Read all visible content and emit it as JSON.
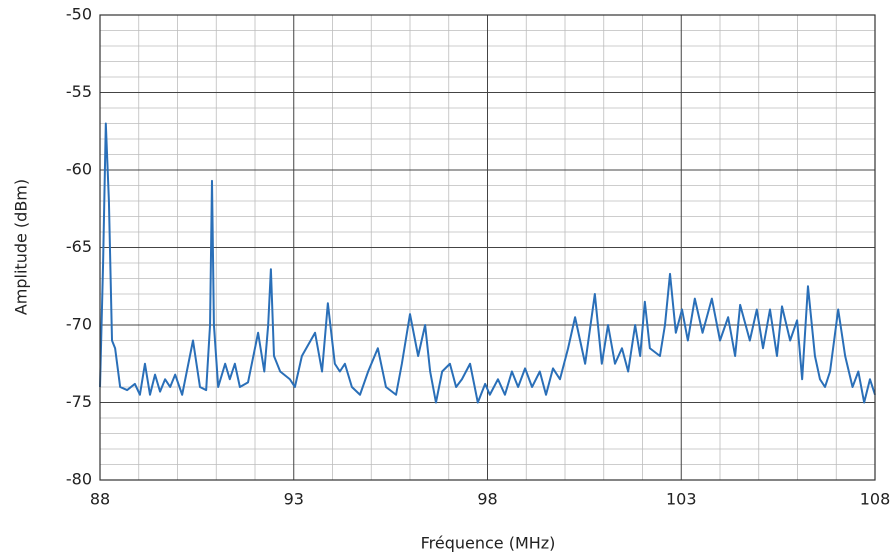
{
  "chart_data": {
    "type": "line",
    "x_label": "Fréquence (MHz)",
    "y_label": "Amplitude (dBm)",
    "xlim": [
      88,
      108
    ],
    "xticks": [
      88,
      93,
      98,
      103,
      108
    ],
    "ylim": [
      -80,
      -50
    ],
    "yticks": [
      -80,
      -75,
      -70,
      -65,
      -60,
      -55,
      -50
    ],
    "grid": true,
    "minor_grid": true,
    "x": [
      88.0,
      88.08,
      88.15,
      88.23,
      88.31,
      88.39,
      88.52,
      88.7,
      88.9,
      89.03,
      89.16,
      89.29,
      89.42,
      89.55,
      89.68,
      89.81,
      89.94,
      90.12,
      90.4,
      90.58,
      90.74,
      90.84,
      90.89,
      90.94,
      91.05,
      91.23,
      91.35,
      91.48,
      91.61,
      91.82,
      92.08,
      92.24,
      92.34,
      92.41,
      92.49,
      92.65,
      92.9,
      93.03,
      93.21,
      93.55,
      93.73,
      93.88,
      94.06,
      94.19,
      94.32,
      94.5,
      94.71,
      94.92,
      95.17,
      95.38,
      95.64,
      95.79,
      96.0,
      96.21,
      96.39,
      96.52,
      96.67,
      96.83,
      97.03,
      97.19,
      97.34,
      97.55,
      97.75,
      97.94,
      98.06,
      98.27,
      98.45,
      98.63,
      98.79,
      98.97,
      99.15,
      99.35,
      99.51,
      99.69,
      99.87,
      100.08,
      100.26,
      100.39,
      100.52,
      100.77,
      100.95,
      101.11,
      101.29,
      101.47,
      101.63,
      101.81,
      101.94,
      102.06,
      102.19,
      102.45,
      102.58,
      102.71,
      102.86,
      103.02,
      103.17,
      103.35,
      103.55,
      103.79,
      104.0,
      104.21,
      104.39,
      104.52,
      104.77,
      104.95,
      105.11,
      105.29,
      105.47,
      105.6,
      105.81,
      105.99,
      106.12,
      106.27,
      106.45,
      106.58,
      106.71,
      106.84,
      107.05,
      107.23,
      107.42,
      107.57,
      107.72,
      107.87,
      108.0
    ],
    "series": [
      {
        "color": "#2a6fb8",
        "values": [
          -74,
          -66,
          -57,
          -62,
          -71,
          -71.5,
          -74,
          -74.2,
          -73.8,
          -74.5,
          -72.5,
          -74.5,
          -73.2,
          -74.3,
          -73.5,
          -74,
          -73.2,
          -74.5,
          -71,
          -74,
          -74.2,
          -70,
          -60.7,
          -70,
          -74,
          -72.5,
          -73.5,
          -72.5,
          -74,
          -73.7,
          -70.5,
          -73,
          -70,
          -66.4,
          -72,
          -73,
          -73.5,
          -74,
          -72,
          -70.5,
          -73,
          -68.6,
          -72.5,
          -73,
          -72.5,
          -74,
          -74.5,
          -73,
          -71.5,
          -74,
          -74.5,
          -72.5,
          -69.3,
          -72,
          -70,
          -73,
          -75,
          -73,
          -72.5,
          -74,
          -73.5,
          -72.5,
          -75,
          -73.8,
          -74.5,
          -73.5,
          -74.5,
          -73,
          -74,
          -72.8,
          -74,
          -73,
          -74.5,
          -72.8,
          -73.5,
          -71.5,
          -69.5,
          -71,
          -72.5,
          -68,
          -72.5,
          -70,
          -72.5,
          -71.5,
          -73,
          -70,
          -72,
          -68.5,
          -71.5,
          -72,
          -70,
          -66.7,
          -70.5,
          -69,
          -71,
          -68.3,
          -70.5,
          -68.3,
          -71,
          -69.5,
          -72,
          -68.7,
          -71,
          -69,
          -71.5,
          -69,
          -72,
          -68.8,
          -71,
          -69.7,
          -73.5,
          -67.5,
          -72,
          -73.5,
          -74,
          -73,
          -69,
          -72,
          -74,
          -73,
          -75,
          -73.5,
          -74.5
        ]
      }
    ]
  }
}
